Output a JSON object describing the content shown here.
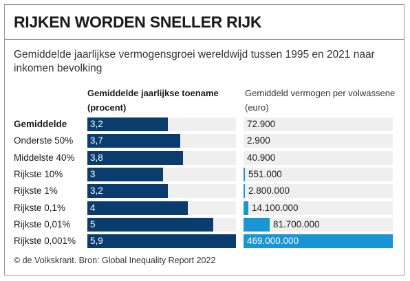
{
  "title": "RIJKEN WORDEN SNELLER RIJK",
  "subtitle": "Gemiddelde jaarlijkse vermogensgroei wereldwijd tussen 1995 en 2021 naar inkomen bevolking",
  "columns": {
    "growth_header": "Gemiddelde jaarlijkse toename (procent)",
    "wealth_header": "Gemiddeld vermogen per volwassene (euro)"
  },
  "source": "© de Volkskrant. Bron: Global Inequality Report 2022",
  "colors": {
    "growth_bar": "#0b3c6e",
    "wealth_bar": "#1a95d3",
    "track": "#efefef"
  },
  "chart_data": {
    "type": "bar",
    "categories": [
      "Gemiddelde",
      "Onderste 50%",
      "Middelste 40%",
      "Rijkste 10%",
      "Rijkste 1%",
      "Rijkste 0,1%",
      "Rijkste 0,01%",
      "Rijkste 0,001%"
    ],
    "series": [
      {
        "name": "Gemiddelde jaarlijkse toename (procent)",
        "values": [
          3.2,
          3.7,
          3.8,
          3.0,
          3.2,
          4.0,
          5.0,
          5.9
        ],
        "labels": [
          "3,2",
          "3,7",
          "3,8",
          "3",
          "3,2",
          "4",
          "5",
          "5,9"
        ]
      },
      {
        "name": "Gemiddeld vermogen per volwassene (euro)",
        "values": [
          72900,
          2900,
          40900,
          551000,
          2800000,
          14100000,
          81700000,
          469000000
        ],
        "labels": [
          "72.900",
          "2.900",
          "40.900",
          "551.000",
          "2.800.000",
          "14.100.000",
          "81.700.000",
          "469.000.000"
        ]
      }
    ],
    "growth_axis_max": 5.9,
    "wealth_axis_max": 469000000,
    "bold_category_index": 0
  }
}
